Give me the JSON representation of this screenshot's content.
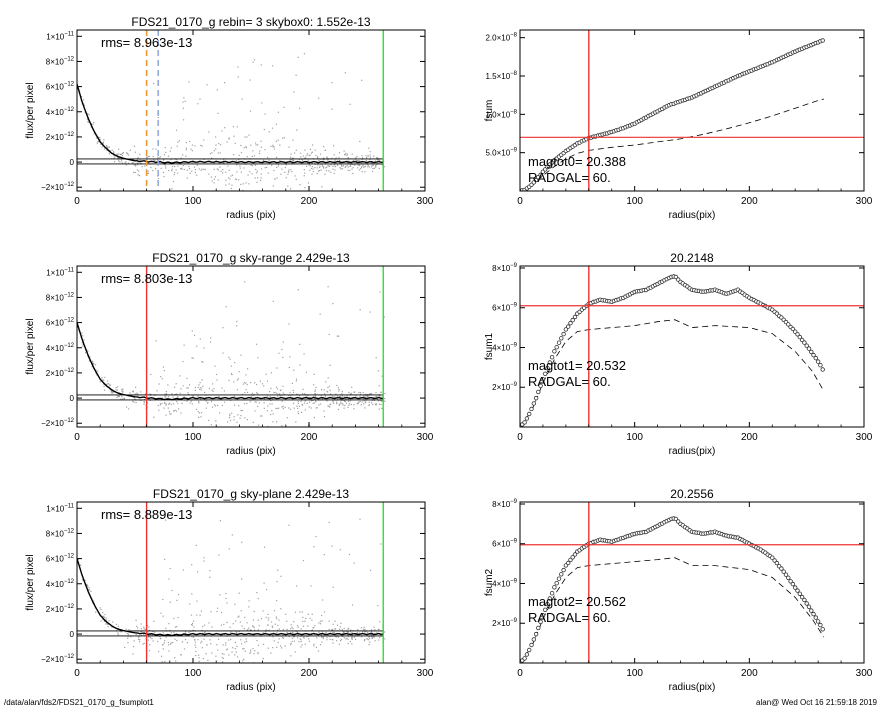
{
  "footer": {
    "left": "/data/alan/fds2/FDS21_0170_g_fsumplot1",
    "right": "alan@  Wed Oct 16 21:59:18 2019"
  },
  "colors": {
    "scatter": "#a0a0a0",
    "profile": "#000000",
    "red_line": "#ee3333",
    "green_line": "#33dd33",
    "orange_dashed": "#ee9933",
    "blue_dashed": "#99aadd"
  },
  "chart_data": [
    {
      "id": "left-top",
      "type": "scatter",
      "title": "FDS21_0170_g rebin= 3   skybox0:  1.552e-13",
      "xlabel": "radius (pix)",
      "ylabel": "flux/per pixel",
      "xlim": [
        0,
        300
      ],
      "ylim": [
        -2.3e-12,
        1.05e-11
      ],
      "xticks": [
        "0",
        "100",
        "200",
        "300"
      ],
      "yticks": [
        {
          "v": -2e-12,
          "m": "−2×10",
          "e": "−12"
        },
        {
          "v": 0,
          "m": "0",
          "e": ""
        },
        {
          "v": 2e-12,
          "m": "2×10",
          "e": "−12"
        },
        {
          "v": 4e-12,
          "m": "4×10",
          "e": "−12"
        },
        {
          "v": 6e-12,
          "m": "6×10",
          "e": "−12"
        },
        {
          "v": 8e-12,
          "m": "8×10",
          "e": "−12"
        },
        {
          "v": 1e-11,
          "m": "1×10",
          "e": "−11"
        }
      ],
      "annotation": "rms= 8.963e-13",
      "vlines": [
        {
          "x": 60,
          "color": "orange_dashed",
          "dashed": true
        },
        {
          "x": 70,
          "color": "blue_dashed",
          "dashed": true
        },
        {
          "x": 264,
          "color": "green_line",
          "dashed": false
        }
      ],
      "hlines": [
        2.5e-13,
        -1.5e-13
      ],
      "profile": [
        [
          0,
          6.2e-12
        ],
        [
          5,
          4.6e-12
        ],
        [
          10,
          3.4e-12
        ],
        [
          15,
          2.4e-12
        ],
        [
          20,
          1.6e-12
        ],
        [
          25,
          1.1e-12
        ],
        [
          30,
          7e-13
        ],
        [
          35,
          4.5e-13
        ],
        [
          40,
          3e-13
        ],
        [
          50,
          1e-13
        ],
        [
          60,
          5e-14
        ],
        [
          70,
          0.0
        ],
        [
          80,
          -5e-14
        ],
        [
          100,
          2e-14
        ],
        [
          150,
          0.0
        ],
        [
          200,
          0.0
        ],
        [
          264,
          0.0
        ]
      ]
    },
    {
      "id": "left-mid",
      "type": "scatter",
      "title": "FDS21_0170_g sky-range  2.429e-13",
      "xlabel": "radius (pix)",
      "ylabel": "flux/per pixel",
      "xlim": [
        0,
        300
      ],
      "ylim": [
        -2.3e-12,
        1.05e-11
      ],
      "xticks": [
        "0",
        "100",
        "200",
        "300"
      ],
      "yticks": [
        {
          "v": -2e-12,
          "m": "−2×10",
          "e": "−12"
        },
        {
          "v": 0,
          "m": "0",
          "e": ""
        },
        {
          "v": 2e-12,
          "m": "2×10",
          "e": "−12"
        },
        {
          "v": 4e-12,
          "m": "4×10",
          "e": "−12"
        },
        {
          "v": 6e-12,
          "m": "6×10",
          "e": "−12"
        },
        {
          "v": 8e-12,
          "m": "8×10",
          "e": "−12"
        },
        {
          "v": 1e-11,
          "m": "1×10",
          "e": "−11"
        }
      ],
      "annotation": "rms= 8.803e-13",
      "vlines": [
        {
          "x": 60,
          "color": "red_line",
          "dashed": false
        },
        {
          "x": 264,
          "color": "green_line",
          "dashed": false
        }
      ],
      "hlines": [
        2.5e-13,
        -1.5e-13
      ],
      "profile": [
        [
          0,
          6e-12
        ],
        [
          5,
          4.5e-12
        ],
        [
          10,
          3.3e-12
        ],
        [
          15,
          2.3e-12
        ],
        [
          20,
          1.5e-12
        ],
        [
          25,
          1e-12
        ],
        [
          30,
          6.5e-13
        ],
        [
          35,
          4e-13
        ],
        [
          40,
          2.8e-13
        ],
        [
          50,
          1e-13
        ],
        [
          60,
          2e-14
        ],
        [
          70,
          -5e-14
        ],
        [
          80,
          -1e-13
        ],
        [
          100,
          0.0
        ],
        [
          150,
          0.0
        ],
        [
          200,
          0.0
        ],
        [
          264,
          0.0
        ]
      ]
    },
    {
      "id": "left-bottom",
      "type": "scatter",
      "title": "FDS21_0170_g sky-plane  2.429e-13",
      "xlabel": "radius (pix)",
      "ylabel": "flux/per pixel",
      "xlim": [
        0,
        300
      ],
      "ylim": [
        -2.3e-12,
        1.05e-11
      ],
      "xticks": [
        "0",
        "100",
        "200",
        "300"
      ],
      "yticks": [
        {
          "v": -2e-12,
          "m": "−2×10",
          "e": "−12"
        },
        {
          "v": 0,
          "m": "0",
          "e": ""
        },
        {
          "v": 2e-12,
          "m": "2×10",
          "e": "−12"
        },
        {
          "v": 4e-12,
          "m": "4×10",
          "e": "−12"
        },
        {
          "v": 6e-12,
          "m": "6×10",
          "e": "−12"
        },
        {
          "v": 8e-12,
          "m": "8×10",
          "e": "−12"
        },
        {
          "v": 1e-11,
          "m": "1×10",
          "e": "−11"
        }
      ],
      "annotation": "rms= 8.889e-13",
      "vlines": [
        {
          "x": 60,
          "color": "red_line",
          "dashed": false
        },
        {
          "x": 264,
          "color": "green_line",
          "dashed": false
        }
      ],
      "hlines": [
        2.5e-13,
        -1.5e-13
      ],
      "profile": [
        [
          0,
          6e-12
        ],
        [
          5,
          4.5e-12
        ],
        [
          10,
          3.3e-12
        ],
        [
          15,
          2.3e-12
        ],
        [
          20,
          1.5e-12
        ],
        [
          25,
          1e-12
        ],
        [
          30,
          6.5e-13
        ],
        [
          35,
          4e-13
        ],
        [
          40,
          2.8e-13
        ],
        [
          50,
          1e-13
        ],
        [
          60,
          2e-14
        ],
        [
          70,
          -5e-14
        ],
        [
          80,
          -8e-14
        ],
        [
          100,
          0.0
        ],
        [
          150,
          0.0
        ],
        [
          200,
          0.0
        ],
        [
          264,
          0.0
        ]
      ]
    },
    {
      "id": "right-top",
      "type": "line",
      "title": "",
      "xlabel": "radius(pix)",
      "ylabel": "fsum",
      "xlim": [
        0,
        300
      ],
      "ylim": [
        0,
        2.1e-08
      ],
      "xticks": [
        "0",
        "100",
        "200",
        "300"
      ],
      "yticks": [
        {
          "v": 5e-09,
          "m": "5.0×10",
          "e": "−9"
        },
        {
          "v": 1e-08,
          "m": "1.0×10",
          "e": "−8"
        },
        {
          "v": 1.5e-08,
          "m": "1.5×10",
          "e": "−8"
        },
        {
          "v": 2e-08,
          "m": "2.0×10",
          "e": "−8"
        }
      ],
      "annotation_lines": [
        "magtot0=  20.388",
        "RADGAL=     60."
      ],
      "vline": 60,
      "hline": 7e-09,
      "curve": [
        [
          0,
          0
        ],
        [
          5,
          2e-10
        ],
        [
          10,
          8e-10
        ],
        [
          15,
          1.6e-09
        ],
        [
          20,
          2.5e-09
        ],
        [
          25,
          3.3e-09
        ],
        [
          30,
          4e-09
        ],
        [
          40,
          5.2e-09
        ],
        [
          50,
          6.2e-09
        ],
        [
          60,
          6.9e-09
        ],
        [
          70,
          7.3e-09
        ],
        [
          80,
          7.7e-09
        ],
        [
          90,
          8.2e-09
        ],
        [
          100,
          8.8e-09
        ],
        [
          110,
          9.6e-09
        ],
        [
          120,
          1.04e-08
        ],
        [
          130,
          1.12e-08
        ],
        [
          140,
          1.17e-08
        ],
        [
          150,
          1.22e-08
        ],
        [
          160,
          1.29e-08
        ],
        [
          170,
          1.36e-08
        ],
        [
          180,
          1.43e-08
        ],
        [
          190,
          1.5e-08
        ],
        [
          200,
          1.56e-08
        ],
        [
          210,
          1.62e-08
        ],
        [
          220,
          1.68e-08
        ],
        [
          230,
          1.75e-08
        ],
        [
          240,
          1.82e-08
        ],
        [
          250,
          1.88e-08
        ],
        [
          260,
          1.94e-08
        ],
        [
          265,
          1.97e-08
        ]
      ],
      "dashed_curve": [
        [
          0,
          0
        ],
        [
          10,
          7e-10
        ],
        [
          20,
          2e-09
        ],
        [
          30,
          3.2e-09
        ],
        [
          40,
          4.2e-09
        ],
        [
          50,
          4.9e-09
        ],
        [
          60,
          5.3e-09
        ],
        [
          80,
          5.7e-09
        ],
        [
          100,
          6e-09
        ],
        [
          120,
          6.4e-09
        ],
        [
          140,
          6.8e-09
        ],
        [
          160,
          7.4e-09
        ],
        [
          180,
          8.1e-09
        ],
        [
          200,
          8.9e-09
        ],
        [
          220,
          9.8e-09
        ],
        [
          240,
          1.08e-08
        ],
        [
          260,
          1.18e-08
        ],
        [
          265,
          1.2e-08
        ]
      ]
    },
    {
      "id": "right-mid",
      "type": "line",
      "title": "20.2148",
      "xlabel": "radius(pix)",
      "ylabel": "fsum1",
      "xlim": [
        0,
        300
      ],
      "ylim": [
        0,
        8.1e-09
      ],
      "xticks": [
        "0",
        "100",
        "200",
        "300"
      ],
      "yticks": [
        {
          "v": 2e-09,
          "m": "2×10",
          "e": "−9"
        },
        {
          "v": 4e-09,
          "m": "4×10",
          "e": "−9"
        },
        {
          "v": 6e-09,
          "m": "6×10",
          "e": "−9"
        },
        {
          "v": 8e-09,
          "m": "8×10",
          "e": "−9"
        }
      ],
      "annotation_lines": [
        "magtot1=  20.532",
        "RADGAL=     60."
      ],
      "vline": 60,
      "hline": 6.1e-09,
      "curve": [
        [
          0,
          0
        ],
        [
          5,
          3e-10
        ],
        [
          10,
          9e-10
        ],
        [
          15,
          1.6e-09
        ],
        [
          20,
          2.4e-09
        ],
        [
          25,
          3.1e-09
        ],
        [
          30,
          3.8e-09
        ],
        [
          40,
          4.9e-09
        ],
        [
          50,
          5.7e-09
        ],
        [
          60,
          6.2e-09
        ],
        [
          70,
          6.4e-09
        ],
        [
          80,
          6.3e-09
        ],
        [
          90,
          6.5e-09
        ],
        [
          100,
          6.8e-09
        ],
        [
          110,
          6.9e-09
        ],
        [
          120,
          7.2e-09
        ],
        [
          130,
          7.5e-09
        ],
        [
          135,
          7.6e-09
        ],
        [
          140,
          7.3e-09
        ],
        [
          150,
          6.9e-09
        ],
        [
          160,
          6.8e-09
        ],
        [
          170,
          6.9e-09
        ],
        [
          180,
          6.7e-09
        ],
        [
          190,
          6.9e-09
        ],
        [
          200,
          6.5e-09
        ],
        [
          210,
          6.2e-09
        ],
        [
          220,
          5.9e-09
        ],
        [
          230,
          5.4e-09
        ],
        [
          240,
          4.8e-09
        ],
        [
          250,
          4.1e-09
        ],
        [
          260,
          3.3e-09
        ],
        [
          265,
          2.8e-09
        ]
      ],
      "dashed_curve": [
        [
          0,
          0
        ],
        [
          10,
          8e-10
        ],
        [
          20,
          2.2e-09
        ],
        [
          30,
          3.4e-09
        ],
        [
          40,
          4.3e-09
        ],
        [
          50,
          4.8e-09
        ],
        [
          60,
          4.9e-09
        ],
        [
          80,
          5e-09
        ],
        [
          100,
          5.1e-09
        ],
        [
          120,
          5.3e-09
        ],
        [
          135,
          5.4e-09
        ],
        [
          150,
          5e-09
        ],
        [
          170,
          5.1e-09
        ],
        [
          200,
          5e-09
        ],
        [
          220,
          4.7e-09
        ],
        [
          240,
          3.8e-09
        ],
        [
          255,
          2.8e-09
        ],
        [
          265,
          1.8e-09
        ]
      ]
    },
    {
      "id": "right-bottom",
      "type": "line",
      "title": "20.2556",
      "xlabel": "radius(pix)",
      "ylabel": "fsum2",
      "xlim": [
        0,
        300
      ],
      "ylim": [
        0,
        8.1e-09
      ],
      "xticks": [
        "0",
        "100",
        "200",
        "300"
      ],
      "yticks": [
        {
          "v": 2e-09,
          "m": "2×10",
          "e": "−9"
        },
        {
          "v": 4e-09,
          "m": "4×10",
          "e": "−9"
        },
        {
          "v": 6e-09,
          "m": "6×10",
          "e": "−9"
        },
        {
          "v": 8e-09,
          "m": "8×10",
          "e": "−9"
        }
      ],
      "annotation_lines": [
        "magtot2=  20.562",
        "RADGAL=     60."
      ],
      "vline": 60,
      "hline": 5.95e-09,
      "curve": [
        [
          0,
          0
        ],
        [
          5,
          3e-10
        ],
        [
          10,
          9e-10
        ],
        [
          15,
          1.6e-09
        ],
        [
          20,
          2.4e-09
        ],
        [
          25,
          3.1e-09
        ],
        [
          30,
          3.8e-09
        ],
        [
          40,
          4.9e-09
        ],
        [
          50,
          5.6e-09
        ],
        [
          60,
          6e-09
        ],
        [
          70,
          6.2e-09
        ],
        [
          80,
          6.1e-09
        ],
        [
          90,
          6.3e-09
        ],
        [
          100,
          6.5e-09
        ],
        [
          110,
          6.6e-09
        ],
        [
          120,
          6.9e-09
        ],
        [
          130,
          7.2e-09
        ],
        [
          135,
          7.3e-09
        ],
        [
          140,
          7e-09
        ],
        [
          150,
          6.6e-09
        ],
        [
          160,
          6.5e-09
        ],
        [
          170,
          6.6e-09
        ],
        [
          180,
          6.4e-09
        ],
        [
          190,
          6.3e-09
        ],
        [
          200,
          6e-09
        ],
        [
          210,
          5.7e-09
        ],
        [
          220,
          5.3e-09
        ],
        [
          230,
          4.6e-09
        ],
        [
          240,
          3.8e-09
        ],
        [
          250,
          3e-09
        ],
        [
          260,
          2.1e-09
        ],
        [
          265,
          1.6e-09
        ]
      ],
      "dashed_curve": [
        [
          0,
          0
        ],
        [
          10,
          8e-10
        ],
        [
          20,
          2.2e-09
        ],
        [
          30,
          3.4e-09
        ],
        [
          40,
          4.3e-09
        ],
        [
          50,
          4.8e-09
        ],
        [
          60,
          4.9e-09
        ],
        [
          80,
          5e-09
        ],
        [
          100,
          5.1e-09
        ],
        [
          120,
          5.2e-09
        ],
        [
          135,
          5.3e-09
        ],
        [
          150,
          4.9e-09
        ],
        [
          170,
          4.9e-09
        ],
        [
          200,
          4.7e-09
        ],
        [
          220,
          4.3e-09
        ],
        [
          240,
          3.3e-09
        ],
        [
          255,
          2.2e-09
        ],
        [
          265,
          1.3e-09
        ]
      ]
    }
  ]
}
